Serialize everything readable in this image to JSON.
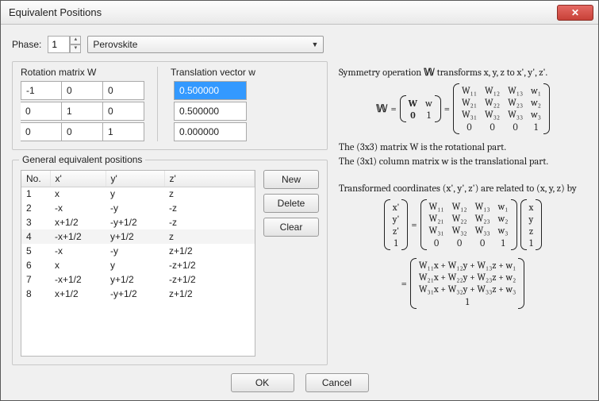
{
  "window": {
    "title": "Equivalent Positions"
  },
  "phase": {
    "label": "Phase:",
    "value": "1",
    "combo": "Perovskite"
  },
  "matrix": {
    "rot_label": "Rotation matrix W",
    "trans_label": "Translation vector w",
    "W": [
      [
        "-1",
        "0",
        "0"
      ],
      [
        "0",
        "1",
        "0"
      ],
      [
        "0",
        "0",
        "1"
      ]
    ],
    "w": [
      "0.500000",
      "0.500000",
      "0.000000"
    ],
    "selected": [
      0
    ]
  },
  "table": {
    "legend": "General equivalent positions",
    "headers": [
      "No.",
      "x'",
      "y'",
      "z'"
    ],
    "col_widths": [
      "36px",
      "70px",
      "74px",
      "auto"
    ],
    "rows": [
      [
        "1",
        "x",
        "y",
        "z"
      ],
      [
        "2",
        "-x",
        "-y",
        "-z"
      ],
      [
        "3",
        "x+1/2",
        "-y+1/2",
        "-z"
      ],
      [
        "4",
        "-x+1/2",
        "y+1/2",
        "z"
      ],
      [
        "5",
        "-x",
        "-y",
        "z+1/2"
      ],
      [
        "6",
        "x",
        "y",
        "-z+1/2"
      ],
      [
        "7",
        "-x+1/2",
        "y+1/2",
        "-z+1/2"
      ],
      [
        "8",
        "x+1/2",
        "-y+1/2",
        "z+1/2"
      ]
    ],
    "selected_row": 3
  },
  "buttons": {
    "new": "New",
    "delete": "Delete",
    "clear": "Clear",
    "ok": "OK",
    "cancel": "Cancel"
  },
  "explain": {
    "line1_a": "Symmetry operation ",
    "line1_b": " transforms x, y, z to x', y', z'.",
    "line2": "The (3x3) matrix W is the rotational part.",
    "line3": "The (3x1) column matrix w is the translational part.",
    "line4": "Transformed coordinates (x', y', z') are related to (x, y, z) by"
  },
  "math": {
    "WW": "𝕎",
    "eq": "=",
    "block2": [
      [
        "W",
        "w"
      ],
      [
        "0",
        "1"
      ]
    ],
    "block4": [
      [
        "W₁₁",
        "W₁₂",
        "W₁₃",
        "w₁"
      ],
      [
        "W₂₁",
        "W₂₂",
        "W₂₃",
        "w₂"
      ],
      [
        "W₃₁",
        "W₃₂",
        "W₃₃",
        "w₃"
      ],
      [
        "0",
        "0",
        "0",
        "1"
      ]
    ],
    "colL": [
      "x'",
      "y'",
      "z'",
      "1"
    ],
    "colR": [
      "x",
      "y",
      "z",
      "1"
    ],
    "expand": [
      "W₁₁x + W₁₂y + W₁₃z + w₁",
      "W₂₁x + W₂₂y + W₂₃z + w₂",
      "W₃₁x + W₃₂y + W₃₃z + w₃",
      "1"
    ]
  },
  "colors": {
    "selection": "#3399ff",
    "close_bg": "#c84138"
  }
}
